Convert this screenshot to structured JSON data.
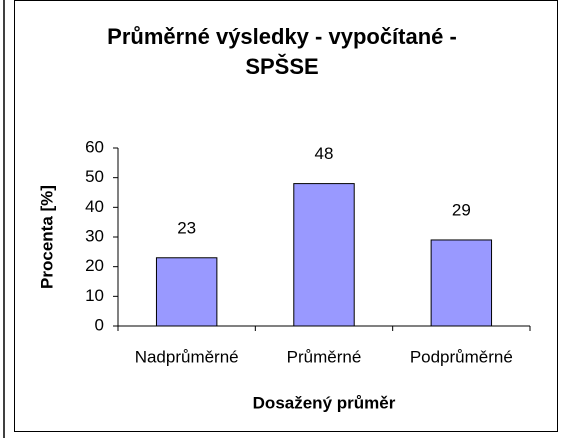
{
  "chart_data": {
    "type": "bar",
    "title": "Průměrné výsledky - vypočítané - SPŠSE",
    "x_label": "Dosažený průměr",
    "y_label": "Procenta [%]",
    "categories": [
      "Nadprůměrné",
      "Průměrné",
      "Podprůměrné"
    ],
    "values": [
      23,
      48,
      29
    ],
    "color": "#9999ff",
    "ylim": [
      0,
      60
    ],
    "yticks": [
      0,
      10,
      20,
      30,
      40,
      50,
      60
    ],
    "grid": false
  }
}
